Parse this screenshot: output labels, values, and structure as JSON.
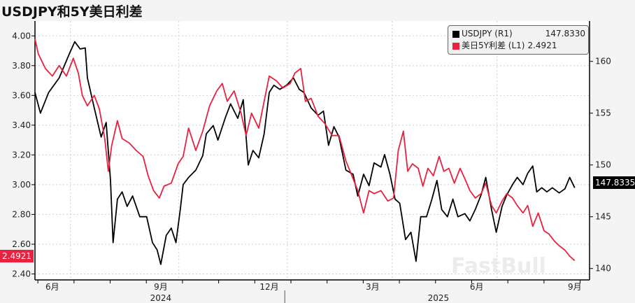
{
  "title": "USDJPY和5Y美日利差",
  "legend": [
    {
      "name": "USDJPY (R1)",
      "value": "147.8330",
      "color": "#000000"
    },
    {
      "name": "美日5Y利差 (L1)",
      "value": "2.4921",
      "color": "#e8223f"
    }
  ],
  "tags": {
    "right": "147.8335",
    "left": "2.4921"
  },
  "watermark": "FastBull",
  "chart_data": {
    "type": "line",
    "title": "USDJPY和5Y美日利差",
    "x_unit": "months since start of Jun 2024",
    "xlim": [
      -0.48,
      14.86
    ],
    "x_ticks": [
      {
        "x": 0,
        "label": "6月"
      },
      {
        "x": 3,
        "label": "9月"
      },
      {
        "x": 6,
        "label": "12月"
      },
      {
        "x": 8.86,
        "label": "3月"
      },
      {
        "x": 11.74,
        "label": "6月"
      },
      {
        "x": 14.45,
        "label": "9月"
      }
    ],
    "year_labels": [
      {
        "x": 3,
        "label": "2024"
      },
      {
        "x": 10.68,
        "label": "2025"
      }
    ],
    "year_divider": 6.43,
    "left_axis": {
      "ylim": [
        2.36,
        4.1
      ],
      "ticks": [
        "4.00",
        "3.80",
        "3.60",
        "3.40",
        "3.20",
        "3.00",
        "2.80",
        "2.60",
        "2.40"
      ]
    },
    "right_axis": {
      "ylim": [
        138.9,
        163.9
      ],
      "ticks": [
        "160",
        "155",
        "150",
        "145",
        "140"
      ]
    },
    "series": [
      {
        "name": "USDJPY (R1)",
        "axis": "right",
        "color": "#000000",
        "points": [
          [
            -0.48,
            157.0
          ],
          [
            -0.33,
            155.0
          ],
          [
            -0.1,
            157.0
          ],
          [
            0.19,
            158.4
          ],
          [
            0.48,
            160.8
          ],
          [
            0.62,
            161.9
          ],
          [
            0.77,
            161.2
          ],
          [
            0.91,
            161.3
          ],
          [
            0.97,
            158.4
          ],
          [
            1.16,
            155.5
          ],
          [
            1.35,
            152.7
          ],
          [
            1.49,
            154.1
          ],
          [
            1.61,
            148.5
          ],
          [
            1.68,
            142.5
          ],
          [
            1.8,
            146.7
          ],
          [
            1.93,
            147.4
          ],
          [
            2.07,
            146.0
          ],
          [
            2.22,
            147.0
          ],
          [
            2.42,
            145.0
          ],
          [
            2.61,
            145.0
          ],
          [
            2.77,
            142.5
          ],
          [
            2.9,
            141.8
          ],
          [
            3.0,
            140.4
          ],
          [
            3.15,
            143.2
          ],
          [
            3.29,
            143.9
          ],
          [
            3.42,
            142.5
          ],
          [
            3.54,
            145.7
          ],
          [
            3.62,
            148.1
          ],
          [
            3.77,
            148.8
          ],
          [
            3.97,
            149.5
          ],
          [
            4.16,
            150.9
          ],
          [
            4.26,
            153.0
          ],
          [
            4.45,
            153.8
          ],
          [
            4.58,
            152.4
          ],
          [
            4.78,
            154.5
          ],
          [
            4.93,
            155.9
          ],
          [
            5.13,
            154.5
          ],
          [
            5.28,
            156.3
          ],
          [
            5.42,
            150.0
          ],
          [
            5.55,
            151.4
          ],
          [
            5.71,
            150.7
          ],
          [
            5.86,
            153.0
          ],
          [
            6.0,
            157.0
          ],
          [
            6.13,
            157.7
          ],
          [
            6.29,
            157.3
          ],
          [
            6.48,
            157.7
          ],
          [
            6.67,
            158.4
          ],
          [
            6.83,
            157.3
          ],
          [
            6.96,
            157.0
          ],
          [
            7.16,
            155.5
          ],
          [
            7.35,
            154.8
          ],
          [
            7.5,
            155.2
          ],
          [
            7.64,
            151.9
          ],
          [
            7.79,
            153.7
          ],
          [
            7.93,
            152.7
          ],
          [
            8.12,
            149.5
          ],
          [
            8.32,
            149.1
          ],
          [
            8.45,
            147.0
          ],
          [
            8.61,
            149.1
          ],
          [
            8.76,
            148.0
          ],
          [
            8.9,
            150.2
          ],
          [
            9.09,
            149.8
          ],
          [
            9.19,
            151.0
          ],
          [
            9.34,
            149.1
          ],
          [
            9.48,
            146.7
          ],
          [
            9.61,
            146.3
          ],
          [
            9.77,
            142.8
          ],
          [
            9.92,
            143.5
          ],
          [
            10.06,
            140.7
          ],
          [
            10.19,
            145.0
          ],
          [
            10.35,
            145.0
          ],
          [
            10.5,
            146.7
          ],
          [
            10.64,
            148.5
          ],
          [
            10.77,
            145.7
          ],
          [
            10.93,
            145.0
          ],
          [
            11.08,
            146.7
          ],
          [
            11.22,
            145.0
          ],
          [
            11.41,
            145.3
          ],
          [
            11.55,
            144.6
          ],
          [
            11.7,
            145.7
          ],
          [
            11.86,
            147.1
          ],
          [
            11.99,
            148.8
          ],
          [
            12.15,
            145.7
          ],
          [
            12.28,
            143.5
          ],
          [
            12.44,
            146.0
          ],
          [
            12.57,
            147.1
          ],
          [
            12.73,
            148.1
          ],
          [
            12.86,
            148.8
          ],
          [
            13.02,
            148.1
          ],
          [
            13.15,
            149.2
          ],
          [
            13.29,
            149.9
          ],
          [
            13.4,
            147.4
          ],
          [
            13.54,
            147.8
          ],
          [
            13.68,
            147.4
          ],
          [
            13.83,
            147.8
          ],
          [
            14.02,
            147.3
          ],
          [
            14.18,
            147.7
          ],
          [
            14.31,
            148.8
          ],
          [
            14.45,
            147.8
          ]
        ]
      },
      {
        "name": "美日5Y利差 (L1)",
        "axis": "left",
        "color": "#e8223f",
        "points": [
          [
            -0.48,
            3.98
          ],
          [
            -0.39,
            3.88
          ],
          [
            -0.19,
            3.78
          ],
          [
            0,
            3.73
          ],
          [
            0.19,
            3.8
          ],
          [
            0.39,
            3.73
          ],
          [
            0.58,
            3.85
          ],
          [
            0.72,
            3.75
          ],
          [
            0.83,
            3.6
          ],
          [
            0.97,
            3.53
          ],
          [
            1.16,
            3.6
          ],
          [
            1.3,
            3.51
          ],
          [
            1.45,
            3.31
          ],
          [
            1.55,
            3.09
          ],
          [
            1.64,
            3.26
          ],
          [
            1.8,
            3.43
          ],
          [
            1.93,
            3.31
          ],
          [
            2.13,
            3.28
          ],
          [
            2.32,
            3.23
          ],
          [
            2.51,
            3.19
          ],
          [
            2.65,
            3.06
          ],
          [
            2.8,
            2.96
          ],
          [
            2.96,
            2.91
          ],
          [
            3.09,
            2.99
          ],
          [
            3.29,
            3.01
          ],
          [
            3.48,
            3.14
          ],
          [
            3.62,
            3.19
          ],
          [
            3.77,
            3.38
          ],
          [
            3.97,
            3.23
          ],
          [
            4.16,
            3.36
          ],
          [
            4.35,
            3.53
          ],
          [
            4.55,
            3.63
          ],
          [
            4.7,
            3.68
          ],
          [
            4.84,
            3.56
          ],
          [
            5.03,
            3.63
          ],
          [
            5.22,
            3.48
          ],
          [
            5.36,
            3.33
          ],
          [
            5.51,
            3.48
          ],
          [
            5.71,
            3.38
          ],
          [
            5.86,
            3.56
          ],
          [
            6.0,
            3.73
          ],
          [
            6.19,
            3.7
          ],
          [
            6.38,
            3.65
          ],
          [
            6.58,
            3.68
          ],
          [
            6.71,
            3.75
          ],
          [
            6.87,
            3.78
          ],
          [
            7.0,
            3.56
          ],
          [
            7.16,
            3.58
          ],
          [
            7.35,
            3.46
          ],
          [
            7.54,
            3.41
          ],
          [
            7.74,
            3.33
          ],
          [
            7.93,
            3.33
          ],
          [
            8.12,
            3.16
          ],
          [
            8.32,
            3.04
          ],
          [
            8.45,
            2.96
          ],
          [
            8.61,
            2.81
          ],
          [
            8.76,
            2.96
          ],
          [
            8.9,
            2.94
          ],
          [
            9.09,
            2.96
          ],
          [
            9.28,
            2.89
          ],
          [
            9.44,
            2.91
          ],
          [
            9.57,
            3.23
          ],
          [
            9.71,
            3.36
          ],
          [
            9.83,
            3.09
          ],
          [
            9.96,
            3.14
          ],
          [
            10.12,
            3.11
          ],
          [
            10.25,
            2.99
          ],
          [
            10.39,
            3.11
          ],
          [
            10.54,
            3.06
          ],
          [
            10.7,
            3.19
          ],
          [
            10.83,
            3.09
          ],
          [
            10.97,
            3.11
          ],
          [
            11.12,
            3.01
          ],
          [
            11.28,
            3.11
          ],
          [
            11.41,
            3.04
          ],
          [
            11.55,
            2.96
          ],
          [
            11.7,
            2.91
          ],
          [
            11.86,
            2.94
          ],
          [
            11.99,
            3.01
          ],
          [
            12.15,
            2.86
          ],
          [
            12.28,
            2.81
          ],
          [
            12.44,
            2.89
          ],
          [
            12.57,
            2.94
          ],
          [
            12.73,
            2.91
          ],
          [
            12.86,
            2.86
          ],
          [
            13.02,
            2.81
          ],
          [
            13.15,
            2.86
          ],
          [
            13.29,
            2.72
          ],
          [
            13.44,
            2.81
          ],
          [
            13.6,
            2.69
          ],
          [
            13.73,
            2.67
          ],
          [
            13.89,
            2.62
          ],
          [
            14.02,
            2.59
          ],
          [
            14.18,
            2.56
          ],
          [
            14.31,
            2.52
          ],
          [
            14.45,
            2.49
          ]
        ]
      }
    ]
  }
}
